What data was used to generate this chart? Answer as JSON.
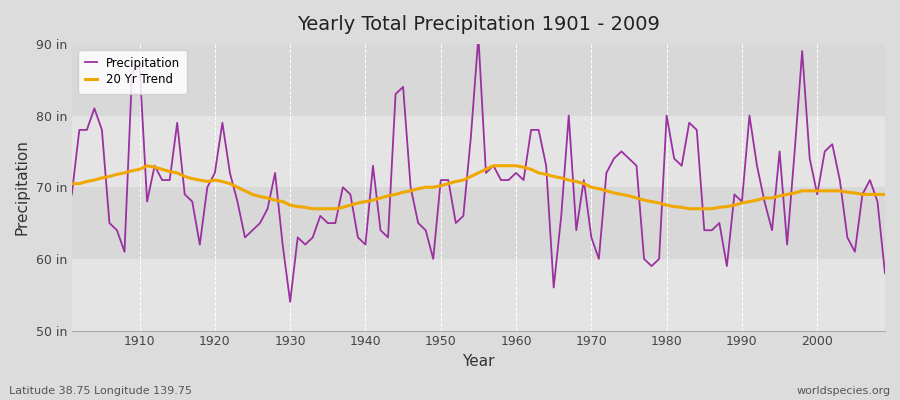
{
  "title": "Yearly Total Precipitation 1901 - 2009",
  "xlabel": "Year",
  "ylabel": "Precipitation",
  "xlim": [
    1901,
    2009
  ],
  "ylim": [
    50,
    90
  ],
  "yticks": [
    50,
    60,
    70,
    80,
    90
  ],
  "ytick_labels": [
    "50 in",
    "60 in",
    "70 in",
    "80 in",
    "90 in"
  ],
  "xticks": [
    1910,
    1920,
    1930,
    1940,
    1950,
    1960,
    1970,
    1980,
    1990,
    2000
  ],
  "bg_color": "#dcdcdc",
  "band_colors": [
    "#d8d8d8",
    "#e4e4e4"
  ],
  "precip_color": "#9b30a0",
  "trend_color": "#f0a800",
  "footer_left": "Latitude 38.75 Longitude 139.75",
  "footer_right": "worldspecies.org",
  "legend_labels": [
    "Precipitation",
    "20 Yr Trend"
  ],
  "years": [
    1901,
    1902,
    1903,
    1904,
    1905,
    1906,
    1907,
    1908,
    1909,
    1910,
    1911,
    1912,
    1913,
    1914,
    1915,
    1916,
    1917,
    1918,
    1919,
    1920,
    1921,
    1922,
    1923,
    1924,
    1925,
    1926,
    1927,
    1928,
    1929,
    1930,
    1931,
    1932,
    1933,
    1934,
    1935,
    1936,
    1937,
    1938,
    1939,
    1940,
    1941,
    1942,
    1943,
    1944,
    1945,
    1946,
    1947,
    1948,
    1949,
    1950,
    1951,
    1952,
    1953,
    1954,
    1955,
    1956,
    1957,
    1958,
    1959,
    1960,
    1961,
    1962,
    1963,
    1964,
    1965,
    1966,
    1967,
    1968,
    1969,
    1970,
    1971,
    1972,
    1973,
    1974,
    1975,
    1976,
    1977,
    1978,
    1979,
    1980,
    1981,
    1982,
    1983,
    1984,
    1985,
    1986,
    1987,
    1988,
    1989,
    1990,
    1991,
    1992,
    1993,
    1994,
    1995,
    1996,
    1997,
    1998,
    1999,
    2000,
    2001,
    2002,
    2003,
    2004,
    2005,
    2006,
    2007,
    2008,
    2009
  ],
  "precip": [
    69,
    78,
    78,
    81,
    78,
    65,
    64,
    61,
    86,
    87,
    68,
    73,
    71,
    71,
    79,
    69,
    68,
    62,
    70,
    72,
    79,
    72,
    68,
    63,
    64,
    65,
    67,
    72,
    62,
    54,
    63,
    62,
    63,
    66,
    65,
    65,
    70,
    69,
    63,
    62,
    73,
    64,
    63,
    83,
    84,
    70,
    65,
    64,
    60,
    71,
    71,
    65,
    66,
    77,
    91,
    72,
    73,
    71,
    71,
    72,
    71,
    78,
    78,
    73,
    56,
    66,
    80,
    64,
    71,
    63,
    60,
    72,
    74,
    75,
    74,
    73,
    60,
    59,
    60,
    80,
    74,
    73,
    79,
    78,
    64,
    64,
    65,
    59,
    69,
    68,
    80,
    73,
    68,
    64,
    75,
    62,
    75,
    89,
    74,
    69,
    75,
    76,
    71,
    63,
    61,
    69,
    71,
    68,
    58
  ],
  "trend": [
    70.5,
    70.5,
    70.8,
    71.0,
    71.3,
    71.5,
    71.8,
    72.0,
    72.3,
    72.5,
    73.0,
    72.8,
    72.5,
    72.2,
    72.0,
    71.5,
    71.2,
    71.0,
    70.8,
    71.0,
    70.8,
    70.5,
    70.0,
    69.5,
    69.0,
    68.7,
    68.5,
    68.2,
    68.0,
    67.5,
    67.3,
    67.2,
    67.0,
    67.0,
    67.0,
    67.0,
    67.2,
    67.5,
    67.8,
    68.0,
    68.2,
    68.5,
    68.8,
    69.0,
    69.3,
    69.5,
    69.8,
    70.0,
    70.0,
    70.2,
    70.5,
    70.8,
    71.0,
    71.5,
    72.0,
    72.5,
    73.0,
    73.0,
    73.0,
    73.0,
    72.8,
    72.5,
    72.0,
    71.8,
    71.5,
    71.3,
    71.0,
    70.8,
    70.5,
    70.0,
    69.8,
    69.5,
    69.2,
    69.0,
    68.8,
    68.5,
    68.2,
    68.0,
    67.8,
    67.5,
    67.3,
    67.2,
    67.0,
    67.0,
    67.0,
    67.0,
    67.2,
    67.3,
    67.5,
    67.8,
    68.0,
    68.2,
    68.5,
    68.5,
    68.8,
    69.0,
    69.2,
    69.5,
    69.5,
    69.5,
    69.5,
    69.5,
    69.5,
    69.3,
    69.2,
    69.0,
    69.0,
    69.0,
    69.0
  ]
}
